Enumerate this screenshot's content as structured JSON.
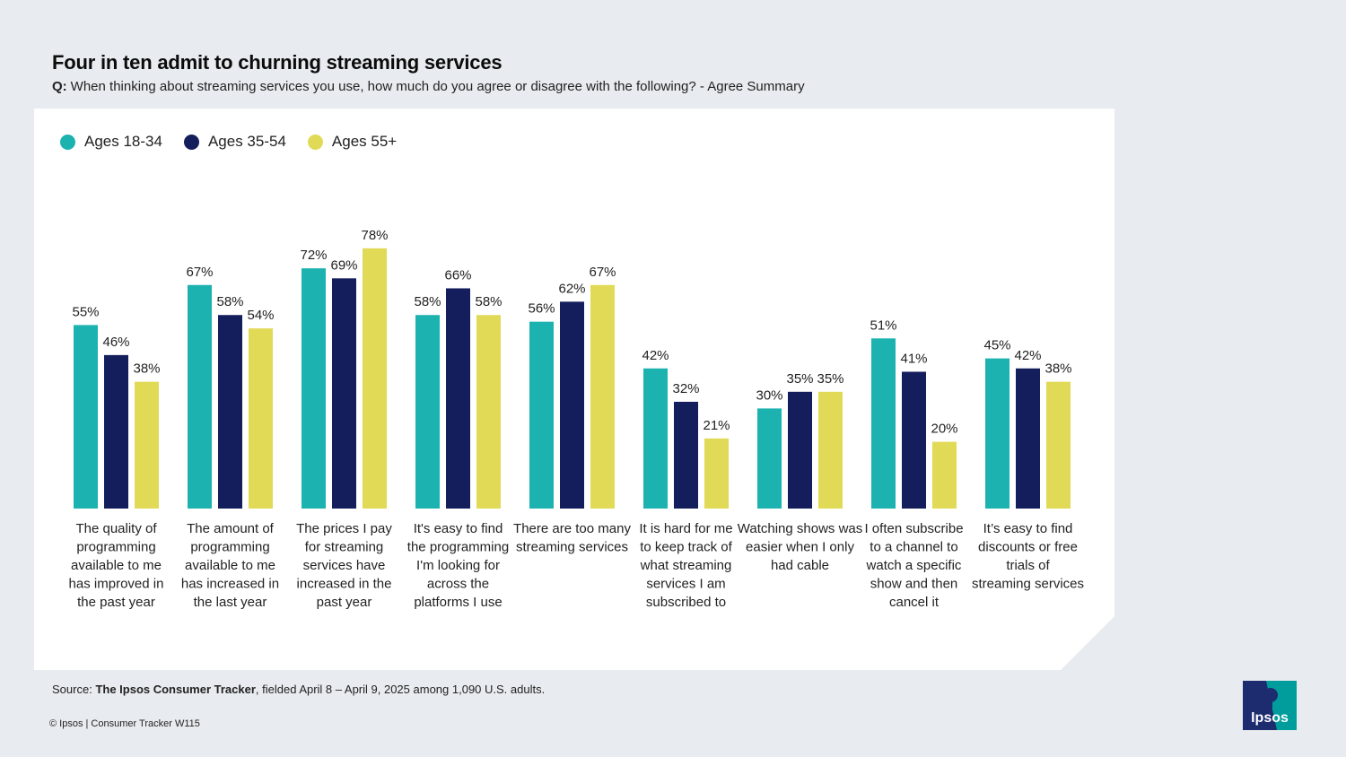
{
  "header": {
    "title": "Four in ten admit to churning streaming services",
    "question_prefix": "Q:",
    "question": "When thinking about streaming services you use, how much do you agree or disagree with the following? - Agree Summary"
  },
  "chart_data": {
    "type": "bar",
    "categories": [
      "The quality of programming available to me has improved in the past year",
      "The amount of programming available to me has increased in the last year",
      "The prices I pay for streaming services have increased in the past year",
      "It's easy to find the programming I'm looking for across the platforms I use",
      "There are too many streaming services",
      "It is hard for me to keep track of what streaming services I am subscribed to",
      "Watching shows was easier when I only had cable",
      "I often subscribe to a channel to watch a specific show and then cancel it",
      "It’s easy to find discounts or free trials of streaming services"
    ],
    "series": [
      {
        "name": "Ages 18-34",
        "color": "#1cb2b0",
        "values": [
          55,
          67,
          72,
          58,
          56,
          42,
          30,
          51,
          45
        ]
      },
      {
        "name": "Ages 35-54",
        "color": "#151e5c",
        "values": [
          46,
          58,
          69,
          66,
          62,
          32,
          35,
          41,
          42
        ]
      },
      {
        "name": "Ages 55+",
        "color": "#e1da56",
        "values": [
          38,
          54,
          78,
          58,
          67,
          21,
          35,
          20,
          38
        ]
      }
    ],
    "value_suffix": "%",
    "legend_position": "top-left",
    "grid": false,
    "ylim": [
      0,
      100
    ]
  },
  "footer": {
    "source_label": "Source:",
    "source_name": "The Ipsos Consumer Tracker",
    "source_rest": ", fielded April 8 – April 9, 2025 among 1,090 U.S. adults.",
    "copyright": "© Ipsos | Consumer Tracker W115"
  },
  "logo": {
    "text": "Ipsos",
    "color": "#009d9c",
    "bg": "#1d2b6f"
  }
}
